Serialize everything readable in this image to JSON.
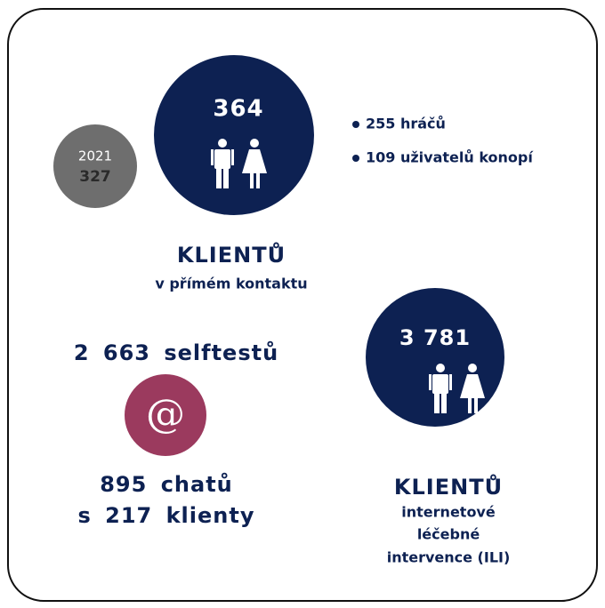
{
  "direct_contact": {
    "year_label": "2021",
    "previous_value": "327",
    "value": "364",
    "details": [
      "255 hráčů",
      "109 uživatelů konopí"
    ],
    "heading": "KLIENTŮ",
    "subheading": "v přímém kontaktu"
  },
  "online": {
    "selftests": "2 663 selftestů",
    "icon": "@",
    "chats": "895 chatů",
    "chat_clients": "s 217 klienty"
  },
  "ili": {
    "value": "3 781",
    "heading": "KLIENTŮ",
    "subheading": [
      "internetové",
      "léčebné",
      "intervence (ILI)"
    ]
  }
}
